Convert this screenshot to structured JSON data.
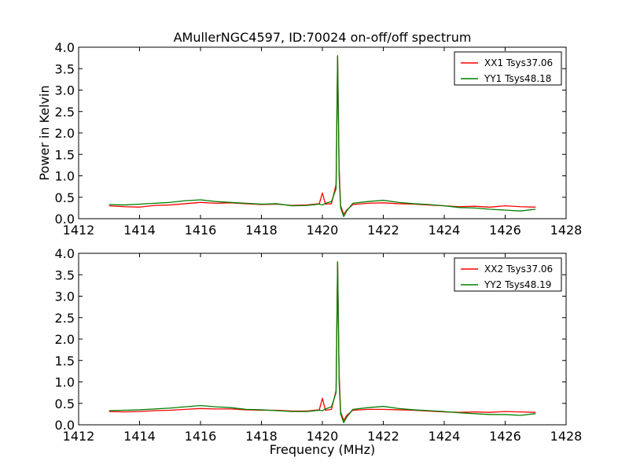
{
  "figure": {
    "title": "AMullerNGC4597, ID:70024 on-off/off spectrum",
    "xlabel": "Frequency (MHz)",
    "ylabel": "Power in Kelvin"
  },
  "chart_data": [
    {
      "type": "line",
      "title": "AMullerNGC4597, ID:70024 on-off/off spectrum",
      "xlabel": "",
      "ylabel": "Power in Kelvin",
      "xlim": [
        1412,
        1428
      ],
      "ylim": [
        0.0,
        4.0
      ],
      "xticks": [
        "1412",
        "1414",
        "1416",
        "1418",
        "1420",
        "1422",
        "1424",
        "1426",
        "1428"
      ],
      "yticks": [
        "0.0",
        "0.5",
        "1.0",
        "1.5",
        "2.0",
        "2.5",
        "3.0",
        "3.5",
        "4.0"
      ],
      "legend_position": "top-right",
      "grid": false,
      "series": [
        {
          "name": "XX1 Tsys37.06",
          "color": "#ff0000",
          "x": [
            1413.0,
            1413.5,
            1414.0,
            1414.5,
            1415.0,
            1415.5,
            1416.0,
            1416.5,
            1417.0,
            1417.5,
            1418.0,
            1418.5,
            1419.0,
            1419.5,
            1419.9,
            1420.0,
            1420.1,
            1420.3,
            1420.45,
            1420.5,
            1420.55,
            1420.6,
            1420.7,
            1420.8,
            1421.0,
            1421.5,
            1422.0,
            1422.5,
            1423.0,
            1423.5,
            1424.0,
            1424.5,
            1425.0,
            1425.5,
            1426.0,
            1426.5,
            1427.0
          ],
          "y": [
            0.3,
            0.28,
            0.27,
            0.31,
            0.32,
            0.35,
            0.38,
            0.36,
            0.37,
            0.35,
            0.33,
            0.34,
            0.31,
            0.32,
            0.35,
            0.6,
            0.34,
            0.35,
            0.8,
            3.8,
            1.2,
            0.3,
            0.1,
            0.2,
            0.33,
            0.36,
            0.37,
            0.35,
            0.34,
            0.32,
            0.3,
            0.28,
            0.29,
            0.27,
            0.3,
            0.28,
            0.27
          ]
        },
        {
          "name": "YY1 Tsys48.18",
          "color": "#008000",
          "x": [
            1413.0,
            1413.5,
            1414.0,
            1414.5,
            1415.0,
            1415.5,
            1416.0,
            1416.5,
            1417.0,
            1417.5,
            1418.0,
            1418.5,
            1419.0,
            1419.5,
            1419.9,
            1420.0,
            1420.1,
            1420.3,
            1420.45,
            1420.5,
            1420.55,
            1420.6,
            1420.7,
            1420.8,
            1421.0,
            1421.5,
            1422.0,
            1422.5,
            1423.0,
            1423.5,
            1424.0,
            1424.5,
            1425.0,
            1425.5,
            1426.0,
            1426.5,
            1427.0
          ],
          "y": [
            0.33,
            0.32,
            0.34,
            0.36,
            0.38,
            0.42,
            0.44,
            0.4,
            0.38,
            0.36,
            0.34,
            0.35,
            0.3,
            0.31,
            0.34,
            0.32,
            0.36,
            0.4,
            0.7,
            3.8,
            1.0,
            0.25,
            0.05,
            0.18,
            0.36,
            0.4,
            0.43,
            0.38,
            0.35,
            0.33,
            0.3,
            0.26,
            0.25,
            0.22,
            0.2,
            0.18,
            0.22
          ]
        }
      ]
    },
    {
      "type": "line",
      "title": "",
      "xlabel": "Frequency (MHz)",
      "ylabel": "",
      "xlim": [
        1412,
        1428
      ],
      "ylim": [
        0.0,
        4.0
      ],
      "xticks": [
        "1412",
        "1414",
        "1416",
        "1418",
        "1420",
        "1422",
        "1424",
        "1426",
        "1428"
      ],
      "yticks": [
        "0.0",
        "0.5",
        "1.0",
        "1.5",
        "2.0",
        "2.5",
        "3.0",
        "3.5",
        "4.0"
      ],
      "legend_position": "top-right",
      "grid": false,
      "series": [
        {
          "name": "XX2 Tsys37.06",
          "color": "#ff0000",
          "x": [
            1413.0,
            1413.5,
            1414.0,
            1414.5,
            1415.0,
            1415.5,
            1416.0,
            1416.5,
            1417.0,
            1417.5,
            1418.0,
            1418.5,
            1419.0,
            1419.5,
            1419.9,
            1420.0,
            1420.1,
            1420.3,
            1420.45,
            1420.5,
            1420.55,
            1420.6,
            1420.7,
            1420.8,
            1421.0,
            1421.5,
            1422.0,
            1422.5,
            1423.0,
            1423.5,
            1424.0,
            1424.5,
            1425.0,
            1425.5,
            1426.0,
            1426.5,
            1427.0
          ],
          "y": [
            0.31,
            0.3,
            0.31,
            0.33,
            0.34,
            0.36,
            0.38,
            0.37,
            0.37,
            0.35,
            0.34,
            0.34,
            0.32,
            0.32,
            0.35,
            0.62,
            0.34,
            0.36,
            0.8,
            3.8,
            1.2,
            0.3,
            0.1,
            0.22,
            0.34,
            0.36,
            0.36,
            0.35,
            0.34,
            0.32,
            0.3,
            0.29,
            0.3,
            0.29,
            0.31,
            0.3,
            0.29
          ]
        },
        {
          "name": "YY2 Tsys48.19",
          "color": "#008000",
          "x": [
            1413.0,
            1413.5,
            1414.0,
            1414.5,
            1415.0,
            1415.5,
            1416.0,
            1416.5,
            1417.0,
            1417.5,
            1418.0,
            1418.5,
            1419.0,
            1419.5,
            1419.9,
            1420.0,
            1420.1,
            1420.3,
            1420.45,
            1420.5,
            1420.55,
            1420.6,
            1420.7,
            1420.8,
            1421.0,
            1421.5,
            1422.0,
            1422.5,
            1423.0,
            1423.5,
            1424.0,
            1424.5,
            1425.0,
            1425.5,
            1426.0,
            1426.5,
            1427.0
          ],
          "y": [
            0.33,
            0.34,
            0.35,
            0.37,
            0.39,
            0.42,
            0.45,
            0.42,
            0.4,
            0.36,
            0.35,
            0.33,
            0.31,
            0.31,
            0.34,
            0.33,
            0.37,
            0.42,
            0.75,
            3.8,
            1.0,
            0.25,
            0.05,
            0.18,
            0.36,
            0.4,
            0.43,
            0.38,
            0.35,
            0.33,
            0.31,
            0.28,
            0.26,
            0.24,
            0.24,
            0.22,
            0.26
          ]
        }
      ]
    }
  ]
}
